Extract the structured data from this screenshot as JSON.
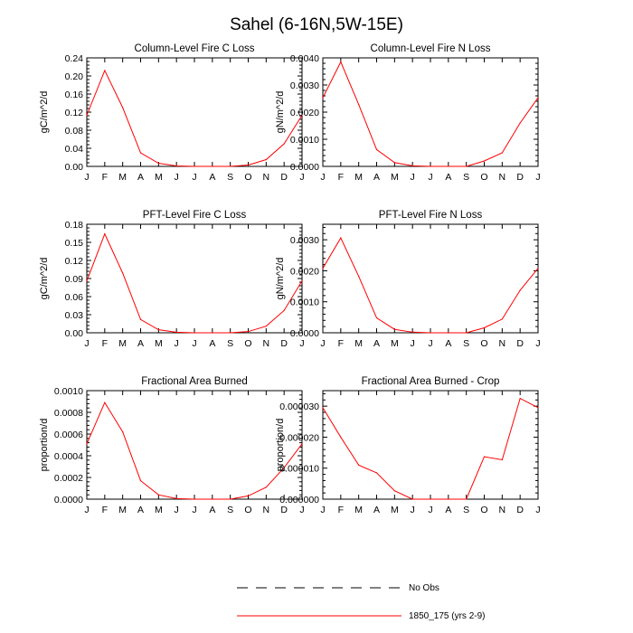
{
  "figure": {
    "title": "Sahel (6-16N,5W-15E)",
    "legend": [
      {
        "label": "No Obs",
        "style": "dashed",
        "color": "#000000"
      },
      {
        "label": "1850_175 (yrs 2-9)",
        "style": "solid",
        "color": "#ff0000"
      }
    ]
  },
  "chart_data": [
    {
      "type": "line",
      "title": "Column-Level Fire C Loss",
      "ylabel": "gC/m^2/d",
      "categories": [
        "J",
        "F",
        "M",
        "A",
        "M",
        "J",
        "J",
        "A",
        "S",
        "O",
        "N",
        "D",
        "J"
      ],
      "ylim": [
        0,
        0.24
      ],
      "yticks": [
        0,
        0.04,
        0.08,
        0.12,
        0.16,
        0.2,
        0.24
      ],
      "yticklabels": [
        "0.00",
        "0.04",
        "0.08",
        "0.12",
        "0.16",
        "0.20",
        "0.24"
      ],
      "series": [
        {
          "name": "1850_175 (yrs 2-9)",
          "color": "#ff0000",
          "values": [
            0.113,
            0.212,
            0.13,
            0.03,
            0.007,
            0.001,
            0.0,
            0.0,
            0.0,
            0.003,
            0.015,
            0.05,
            0.113
          ]
        }
      ]
    },
    {
      "type": "line",
      "title": "Column-Level Fire N Loss",
      "ylabel": "gN/m^2/d",
      "categories": [
        "J",
        "F",
        "M",
        "A",
        "M",
        "J",
        "J",
        "A",
        "S",
        "O",
        "N",
        "D",
        "J"
      ],
      "ylim": [
        0,
        0.004
      ],
      "yticks": [
        0,
        0.001,
        0.002,
        0.003,
        0.004
      ],
      "yticklabels": [
        "0.0000",
        "0.0010",
        "0.0020",
        "0.0030",
        "0.0040"
      ],
      "series": [
        {
          "name": "1850_175 (yrs 2-9)",
          "color": "#ff0000",
          "values": [
            0.00253,
            0.00385,
            0.00228,
            0.00062,
            0.00014,
            2e-05,
            0.0,
            0.0,
            0.0,
            0.0002,
            0.0005,
            0.0016,
            0.00253
          ]
        }
      ]
    },
    {
      "type": "line",
      "title": "PFT-Level Fire C Loss",
      "ylabel": "gC/m^2/d",
      "categories": [
        "J",
        "F",
        "M",
        "A",
        "M",
        "J",
        "J",
        "A",
        "S",
        "O",
        "N",
        "D",
        "J"
      ],
      "ylim": [
        0,
        0.18
      ],
      "yticks": [
        0,
        0.03,
        0.06,
        0.09,
        0.12,
        0.15,
        0.18
      ],
      "yticklabels": [
        "0.00",
        "0.03",
        "0.06",
        "0.09",
        "0.12",
        "0.15",
        "0.18"
      ],
      "series": [
        {
          "name": "1850_175 (yrs 2-9)",
          "color": "#ff0000",
          "values": [
            0.086,
            0.164,
            0.099,
            0.022,
            0.005,
            0.001,
            0.0,
            0.0,
            0.0,
            0.002,
            0.011,
            0.037,
            0.086
          ]
        }
      ]
    },
    {
      "type": "line",
      "title": "PFT-Level Fire N Loss",
      "ylabel": "gN/m^2/d",
      "categories": [
        "J",
        "F",
        "M",
        "A",
        "M",
        "J",
        "J",
        "A",
        "S",
        "O",
        "N",
        "D",
        "J"
      ],
      "ylim": [
        0,
        0.0035
      ],
      "yticks": [
        0,
        0.001,
        0.002,
        0.003
      ],
      "yticklabels": [
        "0.0000",
        "0.0010",
        "0.0020",
        "0.0030"
      ],
      "series": [
        {
          "name": "1850_175 (yrs 2-9)",
          "color": "#ff0000",
          "values": [
            0.00208,
            0.00306,
            0.00182,
            0.00048,
            0.00011,
            2e-05,
            0.0,
            0.0,
            0.0,
            0.00016,
            0.00044,
            0.00137,
            0.00208
          ]
        }
      ]
    },
    {
      "type": "line",
      "title": "Fractional Area Burned",
      "ylabel": "proportion/d",
      "categories": [
        "J",
        "F",
        "M",
        "A",
        "M",
        "J",
        "J",
        "A",
        "S",
        "O",
        "N",
        "D",
        "J"
      ],
      "ylim": [
        0,
        0.001
      ],
      "yticks": [
        0,
        0.0002,
        0.0004,
        0.0006,
        0.0008,
        0.001
      ],
      "yticklabels": [
        "0.0000",
        "0.0002",
        "0.0004",
        "0.0006",
        "0.0008",
        "0.0010"
      ],
      "series": [
        {
          "name": "1850_175 (yrs 2-9)",
          "color": "#ff0000",
          "values": [
            0.00051,
            0.00089,
            0.00062,
            0.00017,
            4e-05,
            5e-06,
            0.0,
            0.0,
            0.0,
            3e-05,
            0.00011,
            0.00029,
            0.00051
          ]
        }
      ]
    },
    {
      "type": "line",
      "title": "Fractional Area Burned - Crop",
      "ylabel": "proportion/d",
      "categories": [
        "J",
        "F",
        "M",
        "A",
        "M",
        "J",
        "J",
        "A",
        "S",
        "O",
        "N",
        "D",
        "J"
      ],
      "ylim": [
        0,
        3.5e-05
      ],
      "yticks": [
        0,
        1e-05,
        2e-05,
        3e-05
      ],
      "yticklabels": [
        "0.000000",
        "0.000010",
        "0.000020",
        "0.000030"
      ],
      "series": [
        {
          "name": "1850_175 (yrs 2-9)",
          "color": "#ff0000",
          "values": [
            2.95e-05,
            2e-05,
            1.1e-05,
            8.5e-06,
            2.7e-06,
            0.0,
            0.0,
            0.0,
            0.0,
            1.37e-05,
            1.27e-05,
            3.25e-05,
            2.95e-05
          ]
        }
      ]
    }
  ]
}
